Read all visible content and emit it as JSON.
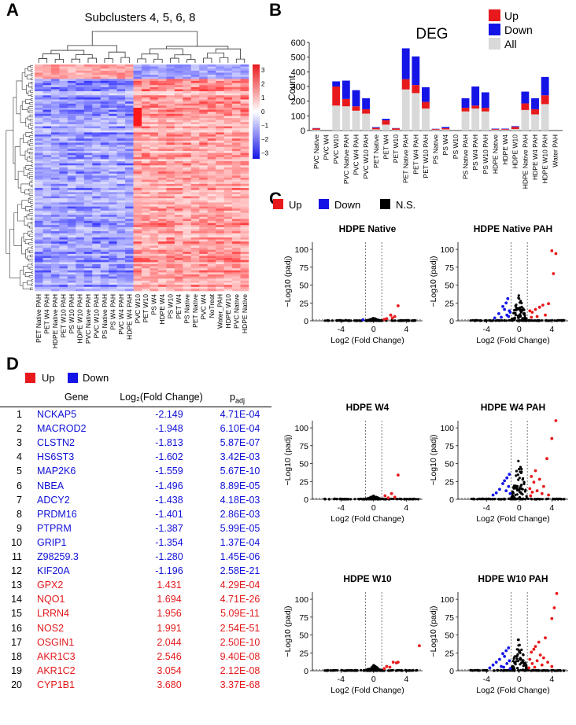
{
  "panels": {
    "a": "A",
    "b": "B",
    "c": "C",
    "d": "D"
  },
  "colors": {
    "up": "#e8191c",
    "down": "#1414e6",
    "ns": "#000000",
    "all": "#d9d9d9"
  },
  "heatmap": {
    "title": "Subclusters 4, 5, 6, 8",
    "scale_ticks": [
      "3",
      "2",
      "1",
      "0",
      "−1",
      "−2",
      "−3"
    ],
    "columns": [
      "PET Native PAH",
      "PET W4 PAH",
      "HDPE Native PAH",
      "PET W10 PAH",
      "PS W10 PAH",
      "HDPE W10 PAH",
      "PVC Native PAH",
      "PVC W10 PAH",
      "PS Native PAH",
      "PS W4 PAH",
      "PVC W4 PAH",
      "HDPE W4 PAH",
      "PVC W10",
      "PET W10",
      "PS W4",
      "HDPE W4",
      "PS W10",
      "PET W4",
      "PS Native",
      "PET Native",
      "PVC W4",
      "NoTreat",
      "Water_PAH",
      "HDPE W10",
      "PVC Native",
      "HDPE Native"
    ]
  },
  "chart_data": [
    {
      "type": "bar",
      "title": "DEG",
      "ylabel": "Count",
      "ylim": [
        0,
        600
      ],
      "yticks": [
        0,
        100,
        200,
        300,
        400,
        500,
        600
      ],
      "legend": [
        "Up",
        "Down",
        "All"
      ],
      "categories": [
        "PVC Native",
        "PVC W4",
        "PVC W10",
        "PVC Native PAH",
        "PVC W4 PAH",
        "PVC W10 PAH",
        "PET Native",
        "PET W4",
        "PET W10",
        "PET Native PAH",
        "PET W4 PAH",
        "PET W10 PAH",
        "PS Native",
        "PS W4",
        "PS W10",
        "PS Native PAH",
        "PS W4 PAH",
        "PS W10 PAH",
        "HDPE Native",
        "HDPE W4",
        "HDPE W10",
        "HDPE Native PAH",
        "HDPE W4 PAH",
        "HDPE W10 PAH",
        "Water PAH"
      ],
      "series": [
        {
          "name": "All",
          "values": [
            5,
            0,
            170,
            165,
            135,
            115,
            8,
            40,
            5,
            280,
            255,
            150,
            5,
            8,
            0,
            130,
            150,
            130,
            5,
            5,
            10,
            140,
            110,
            180,
            0
          ]
        },
        {
          "name": "Up",
          "values": [
            10,
            0,
            130,
            50,
            30,
            30,
            10,
            30,
            10,
            70,
            55,
            45,
            5,
            8,
            0,
            25,
            20,
            25,
            5,
            5,
            15,
            45,
            35,
            60,
            0
          ]
        },
        {
          "name": "Down",
          "values": [
            2,
            0,
            35,
            125,
            110,
            75,
            5,
            10,
            2,
            210,
            195,
            100,
            2,
            8,
            0,
            65,
            130,
            105,
            3,
            3,
            5,
            80,
            75,
            125,
            0
          ]
        }
      ]
    },
    {
      "type": "scatter",
      "subtype": "volcano",
      "legend": [
        "Up",
        "Down",
        "N.S."
      ],
      "xlabel": "Log2 (Fold Change)",
      "ylabel": "−Log10 (padj)",
      "xticks": [
        "-4",
        "0",
        "4"
      ],
      "yticks": [
        "0",
        "25",
        "50",
        "75",
        "100"
      ],
      "ylim": [
        0,
        110
      ],
      "xlim": [
        -7.5,
        6
      ],
      "thresholds": {
        "log2fc": [
          -1,
          1
        ],
        "neglog10p": 1.3
      },
      "plots": [
        {
          "title": "HDPE Native",
          "up_points": [
            [
              3.0,
              21
            ],
            [
              2.1,
              8
            ],
            [
              2.6,
              6
            ],
            [
              1.6,
              3
            ],
            [
              1.3,
              2
            ],
            [
              2.3,
              4
            ]
          ],
          "down_points": [
            [
              -1.3,
              1.5
            ]
          ],
          "spread": 2.0,
          "peak": 4
        },
        {
          "title": "HDPE Native PAH",
          "up_points": [
            [
              4.0,
              98
            ],
            [
              4.5,
              94
            ],
            [
              4.2,
              66
            ],
            [
              3.6,
              24
            ],
            [
              2.9,
              22
            ],
            [
              2.5,
              19
            ],
            [
              2.0,
              16
            ],
            [
              1.6,
              12
            ],
            [
              3.2,
              8
            ],
            [
              2.2,
              6
            ],
            [
              1.5,
              5
            ],
            [
              1.3,
              14
            ]
          ],
          "down_points": [
            [
              -1.4,
              31
            ],
            [
              -1.6,
              25
            ],
            [
              -2.0,
              20
            ],
            [
              -1.8,
              16
            ],
            [
              -1.2,
              14
            ],
            [
              -2.5,
              10
            ],
            [
              -1.5,
              8
            ],
            [
              -1.3,
              6
            ],
            [
              -2.2,
              5
            ],
            [
              -1.1,
              12
            ],
            [
              -3.0,
              4
            ]
          ],
          "spread": 3.0,
          "peak": 38
        },
        {
          "title": "HDPE W4",
          "up_points": [
            [
              3.0,
              34
            ],
            [
              2.2,
              8
            ],
            [
              1.4,
              5
            ],
            [
              2.6,
              3
            ],
            [
              1.8,
              2
            ]
          ],
          "down_points": [],
          "spread": 2.0,
          "peak": 5
        },
        {
          "title": "HDPE W4 PAH",
          "up_points": [
            [
              4.5,
              110
            ],
            [
              4.0,
              85
            ],
            [
              3.4,
              57
            ],
            [
              2.0,
              40
            ],
            [
              1.5,
              32
            ],
            [
              2.5,
              28
            ],
            [
              1.8,
              24
            ],
            [
              3.0,
              18
            ],
            [
              1.3,
              15
            ],
            [
              2.2,
              12
            ],
            [
              1.6,
              10
            ],
            [
              2.8,
              8
            ],
            [
              3.6,
              6
            ],
            [
              1.4,
              5
            ]
          ],
          "down_points": [
            [
              -1.2,
              35
            ],
            [
              -1.5,
              30
            ],
            [
              -1.8,
              26
            ],
            [
              -2.0,
              22
            ],
            [
              -1.3,
              18
            ],
            [
              -2.4,
              14
            ],
            [
              -1.6,
              12
            ],
            [
              -2.8,
              9
            ],
            [
              -1.1,
              8
            ],
            [
              -3.2,
              6
            ]
          ],
          "spread": 3.0,
          "peak": 62
        },
        {
          "title": "HDPE W10",
          "up_points": [
            [
              5.6,
              35
            ],
            [
              3.0,
              12
            ],
            [
              2.4,
              12
            ],
            [
              2.8,
              11
            ],
            [
              1.6,
              6
            ],
            [
              2.0,
              5
            ],
            [
              1.3,
              3
            ]
          ],
          "down_points": [],
          "spread": 2.2,
          "peak": 8
        },
        {
          "title": "HDPE W10 PAH",
          "up_points": [
            [
              4.6,
              108
            ],
            [
              4.3,
              88
            ],
            [
              4.0,
              73
            ],
            [
              3.2,
              46
            ],
            [
              2.4,
              40
            ],
            [
              2.0,
              34
            ],
            [
              1.8,
              30
            ],
            [
              1.5,
              26
            ],
            [
              2.6,
              22
            ],
            [
              3.0,
              18
            ],
            [
              1.3,
              16
            ],
            [
              2.2,
              14
            ],
            [
              3.5,
              12
            ],
            [
              1.6,
              10
            ],
            [
              2.8,
              8
            ],
            [
              4.0,
              6
            ],
            [
              1.9,
              5
            ],
            [
              1.2,
              4
            ]
          ],
          "down_points": [
            [
              -1.3,
              32
            ],
            [
              -1.6,
              28
            ],
            [
              -2.0,
              24
            ],
            [
              -1.8,
              20
            ],
            [
              -2.4,
              16
            ],
            [
              -1.2,
              14
            ],
            [
              -2.8,
              12
            ],
            [
              -1.5,
              10
            ],
            [
              -3.2,
              8
            ],
            [
              -2.2,
              6
            ],
            [
              -1.9,
              5
            ],
            [
              -3.6,
              4
            ],
            [
              -1.1,
              3
            ]
          ],
          "spread": 3.0,
          "peak": 52
        }
      ]
    }
  ],
  "table": {
    "legend": [
      "Up",
      "Down"
    ],
    "headers": {
      "gene": "Gene",
      "fc": "Log₂(Fold Change)",
      "p": "p",
      "p_sub": "adj"
    },
    "rows": [
      {
        "idx": "1",
        "gene": "NCKAP5",
        "fc": "-2.149",
        "p": "4.71E-04",
        "dir": "down"
      },
      {
        "idx": "2",
        "gene": "MACROD2",
        "fc": "-1.948",
        "p": "6.10E-04",
        "dir": "down"
      },
      {
        "idx": "3",
        "gene": "CLSTN2",
        "fc": "-1.813",
        "p": "5.87E-07",
        "dir": "down"
      },
      {
        "idx": "4",
        "gene": "HS6ST3",
        "fc": "-1.602",
        "p": "3.42E-03",
        "dir": "down"
      },
      {
        "idx": "5",
        "gene": "MAP2K6",
        "fc": "-1.559",
        "p": "5.67E-10",
        "dir": "down"
      },
      {
        "idx": "6",
        "gene": "NBEA",
        "fc": "-1.496",
        "p": "8.89E-05",
        "dir": "down"
      },
      {
        "idx": "7",
        "gene": "ADCY2",
        "fc": "-1.438",
        "p": "4.18E-03",
        "dir": "down"
      },
      {
        "idx": "8",
        "gene": "PRDM16",
        "fc": "-1.401",
        "p": "2.86E-03",
        "dir": "down"
      },
      {
        "idx": "9",
        "gene": "PTPRM",
        "fc": "-1.387",
        "p": "5.99E-05",
        "dir": "down"
      },
      {
        "idx": "10",
        "gene": "GRIP1",
        "fc": "-1.354",
        "p": "1.37E-04",
        "dir": "down"
      },
      {
        "idx": "11",
        "gene": "Z98259.3",
        "fc": "-1.280",
        "p": "1.45E-06",
        "dir": "down"
      },
      {
        "idx": "12",
        "gene": "KIF20A",
        "fc": "-1.196",
        "p": "2.58E-21",
        "dir": "down"
      },
      {
        "idx": "13",
        "gene": "GPX2",
        "fc": "1.431",
        "p": "4.29E-04",
        "dir": "up"
      },
      {
        "idx": "14",
        "gene": "NQO1",
        "fc": "1.694",
        "p": "4.71E-26",
        "dir": "up"
      },
      {
        "idx": "15",
        "gene": "LRRN4",
        "fc": "1.956",
        "p": "5.09E-11",
        "dir": "up"
      },
      {
        "idx": "16",
        "gene": "NOS2",
        "fc": "1.991",
        "p": "2.54E-51",
        "dir": "up"
      },
      {
        "idx": "17",
        "gene": "OSGIN1",
        "fc": "2.044",
        "p": "2.50E-10",
        "dir": "up"
      },
      {
        "idx": "18",
        "gene": "AKR1C3",
        "fc": "2.546",
        "p": "9.40E-08",
        "dir": "up"
      },
      {
        "idx": "19",
        "gene": "AKR1C2",
        "fc": "3.054",
        "p": "2.12E-08",
        "dir": "up"
      },
      {
        "idx": "20",
        "gene": "CYP1B1",
        "fc": "3.680",
        "p": "3.37E-68",
        "dir": "up"
      }
    ]
  }
}
